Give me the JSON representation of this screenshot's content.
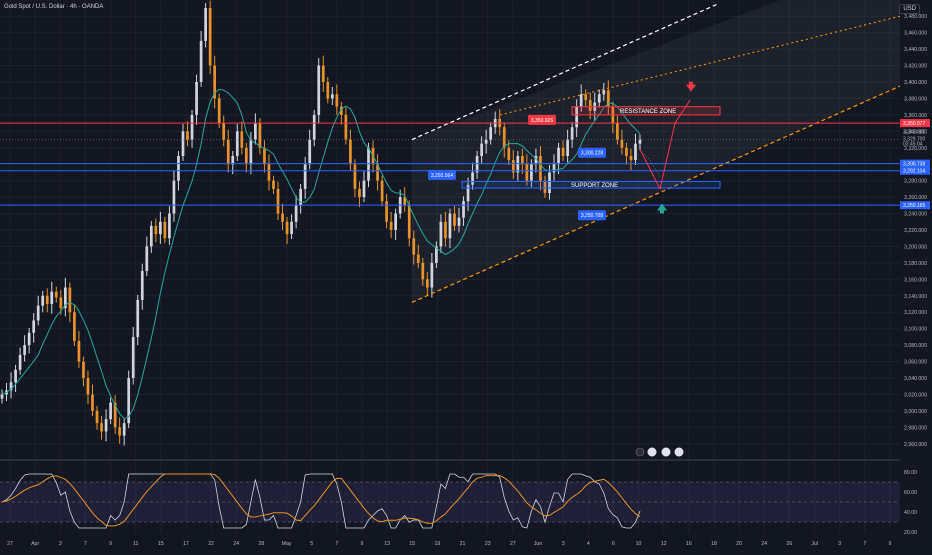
{
  "header": {
    "symbol_title": "Gold Spot / U.S. Dollar · 4h · OANDA",
    "currency": "USD"
  },
  "colors": {
    "background": "#131722",
    "grid": "#1e222d",
    "candle_up": "#d1d4dc",
    "candle_down": "#e8922a",
    "ma_line": "#26a69a",
    "resistance": "#f23645",
    "support": "#2962ff",
    "channel": "#ff9800",
    "channel_top": "#ffffff",
    "rsi_line": "#d1d4dc",
    "rsi_ma": "#e8922a",
    "axis_text": "#b2b5be"
  },
  "chart_data": {
    "type": "candlestick",
    "price_axis": {
      "ticks": [
        "3,480.000",
        "3,460.000",
        "3,440.000",
        "3,420.000",
        "3,400.000",
        "3,380.000",
        "3,360.000",
        "3,340.000",
        "3,320.000",
        "3,300.000",
        "3,280.000",
        "3,260.000",
        "3,240.000",
        "3,220.000",
        "3,200.000",
        "3,180.000",
        "3,160.000",
        "3,140.000",
        "3,120.000",
        "3,100.000",
        "3,080.000",
        "3,060.000",
        "3,040.000",
        "3,020.000",
        "3,000.000",
        "2,980.000",
        "2,960.000"
      ],
      "range": [
        2950,
        3490
      ]
    },
    "time_axis": {
      "ticks": [
        "27",
        "Apr",
        "3",
        "7",
        "9",
        "11",
        "15",
        "17",
        "22",
        "24",
        "28",
        "May",
        "5",
        "7",
        "9",
        "13",
        "15",
        "19",
        "21",
        "23",
        "27",
        "Jun",
        "3",
        "4",
        "6",
        "10",
        "12",
        "16",
        "18",
        "20",
        "24",
        "26",
        "Jul",
        "3",
        "7",
        "9"
      ]
    },
    "price_labels": [
      {
        "name": "resistance-line",
        "value": "3,350.077",
        "color": "#f23645"
      },
      {
        "name": "last-price",
        "value": "3,329.700",
        "color": "#d1d4dc"
      },
      {
        "name": "countdown",
        "value": "03:45:04",
        "color": "#d1d4dc"
      },
      {
        "name": "ma-value",
        "value": "3,340.000",
        "color": "#d1d4dc"
      },
      {
        "name": "support-1",
        "value": "3,300.738",
        "color": "#2962ff"
      },
      {
        "name": "support-2",
        "value": "3,292.104",
        "color": "#2962ff"
      },
      {
        "name": "support-3",
        "value": "3,250.165",
        "color": "#2962ff"
      }
    ],
    "annotations": [
      {
        "text": "RESISTANCE ZONE",
        "from": 3360,
        "to": 3370
      },
      {
        "text": "SUPPORT ZONE",
        "from": 3271,
        "to": 3279
      },
      {
        "text": "3,350.926"
      },
      {
        "text": "3,300.228"
      },
      {
        "text": "3,292.564"
      },
      {
        "text": "3,250.708"
      }
    ],
    "rsi": {
      "ticks": [
        "80.00",
        "60.00",
        "40.00",
        "20.00"
      ],
      "range": [
        20,
        84
      ],
      "upper_band": 70,
      "mid": 50,
      "lower_band": 30
    },
    "closes": [
      3020,
      3025,
      3035,
      3050,
      3068,
      3080,
      3095,
      3110,
      3128,
      3140,
      3130,
      3145,
      3138,
      3125,
      3150,
      3120,
      3085,
      3060,
      3040,
      3020,
      3000,
      2985,
      2975,
      2990,
      3010,
      2980,
      2970,
      2985,
      3040,
      3090,
      3135,
      3170,
      3200,
      3225,
      3215,
      3230,
      3210,
      3240,
      3280,
      3310,
      3340,
      3330,
      3360,
      3400,
      3450,
      3490,
      3420,
      3380,
      3350,
      3330,
      3300,
      3310,
      3340,
      3320,
      3300,
      3330,
      3350,
      3320,
      3300,
      3280,
      3270,
      3240,
      3230,
      3215,
      3230,
      3250,
      3270,
      3300,
      3330,
      3360,
      3420,
      3400,
      3380,
      3385,
      3370,
      3360,
      3330,
      3300,
      3270,
      3260,
      3280,
      3320,
      3300,
      3280,
      3255,
      3230,
      3220,
      3240,
      3260,
      3250,
      3210,
      3190,
      3180,
      3160,
      3150,
      3180,
      3200,
      3230,
      3210,
      3240,
      3225,
      3235,
      3255,
      3275,
      3290,
      3310,
      3325,
      3330,
      3345,
      3355,
      3345,
      3320,
      3305,
      3290,
      3310,
      3300,
      3280,
      3300,
      3310,
      3280,
      3265,
      3290,
      3300,
      3320,
      3310,
      3330,
      3345,
      3370,
      3385,
      3378,
      3365,
      3375,
      3385,
      3390,
      3370,
      3350,
      3330,
      3320,
      3310,
      3305,
      3325,
      3330
    ]
  }
}
